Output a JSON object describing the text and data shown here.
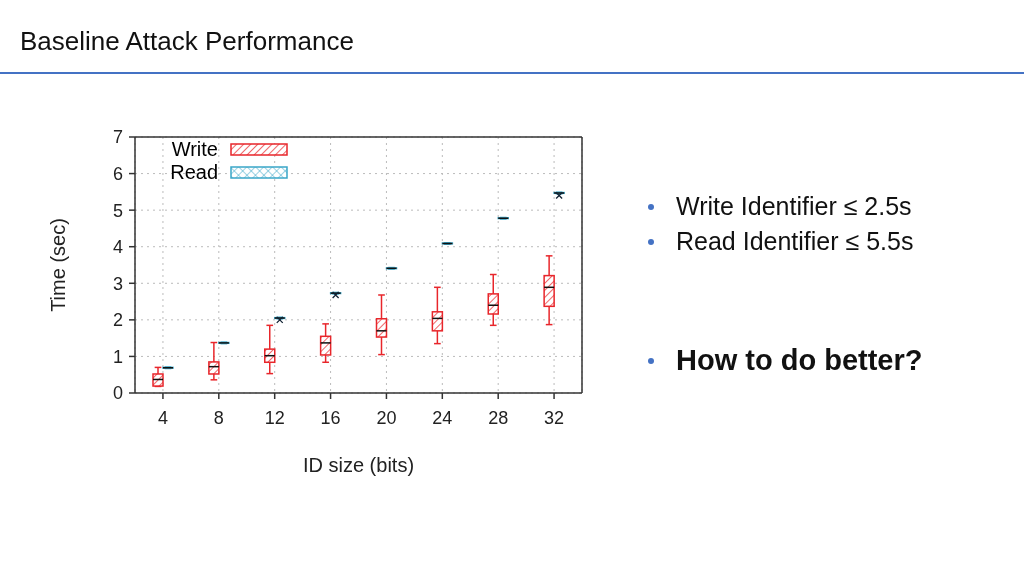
{
  "chart_data": {
    "type": "box",
    "title": "Baseline Attack Performance",
    "xlabel": "ID size (bits)",
    "ylabel": "Time (sec)",
    "categories": [
      "4",
      "8",
      "12",
      "16",
      "20",
      "24",
      "28",
      "32"
    ],
    "ylim": [
      0,
      7
    ],
    "yticks": [
      0,
      1,
      2,
      3,
      4,
      5,
      6,
      7
    ],
    "grid": true,
    "legend": "top left",
    "series": [
      {
        "name": "Write",
        "color": "#e8262b",
        "boxes": [
          {
            "low": 0.18,
            "q1": 0.19,
            "median": 0.37,
            "q3": 0.52,
            "high": 0.7
          },
          {
            "low": 0.36,
            "q1": 0.52,
            "median": 0.72,
            "q3": 0.85,
            "high": 1.38
          },
          {
            "low": 0.53,
            "q1": 0.84,
            "median": 1.02,
            "q3": 1.2,
            "high": 1.85
          },
          {
            "low": 0.84,
            "q1": 1.04,
            "median": 1.37,
            "q3": 1.55,
            "high": 1.89
          },
          {
            "low": 1.05,
            "q1": 1.53,
            "median": 1.7,
            "q3": 2.03,
            "high": 2.68
          },
          {
            "low": 1.35,
            "q1": 1.7,
            "median": 2.04,
            "q3": 2.22,
            "high": 2.89
          },
          {
            "low": 1.85,
            "q1": 2.16,
            "median": 2.4,
            "q3": 2.71,
            "high": 3.24
          },
          {
            "low": 1.87,
            "q1": 2.37,
            "median": 2.89,
            "q3": 3.21,
            "high": 3.75
          }
        ]
      },
      {
        "name": "Read",
        "color": "#3aa6c8",
        "boxes": [
          {
            "low": 0.67,
            "q1": 0.68,
            "median": 0.69,
            "q3": 0.7,
            "high": 0.71
          },
          {
            "low": 1.35,
            "q1": 1.36,
            "median": 1.37,
            "q3": 1.38,
            "high": 1.39
          },
          {
            "low": 2.03,
            "q1": 2.04,
            "median": 2.05,
            "q3": 2.06,
            "high": 2.07,
            "outliers": [
              2.0
            ]
          },
          {
            "low": 2.71,
            "q1": 2.72,
            "median": 2.73,
            "q3": 2.74,
            "high": 2.75,
            "outliers": [
              2.68
            ]
          },
          {
            "low": 3.39,
            "q1": 3.4,
            "median": 3.41,
            "q3": 3.42,
            "high": 3.43
          },
          {
            "low": 4.07,
            "q1": 4.08,
            "median": 4.09,
            "q3": 4.1,
            "high": 4.11
          },
          {
            "low": 4.76,
            "q1": 4.77,
            "median": 4.78,
            "q3": 4.79,
            "high": 4.8
          },
          {
            "low": 5.45,
            "q1": 5.46,
            "median": 5.47,
            "q3": 5.48,
            "high": 5.49,
            "outliers": [
              5.4
            ]
          }
        ]
      }
    ],
    "annotations": [
      "Write Identifier ≤ 2.5s",
      "Read Identifier ≤ 5.5s",
      "How to do better?"
    ]
  }
}
